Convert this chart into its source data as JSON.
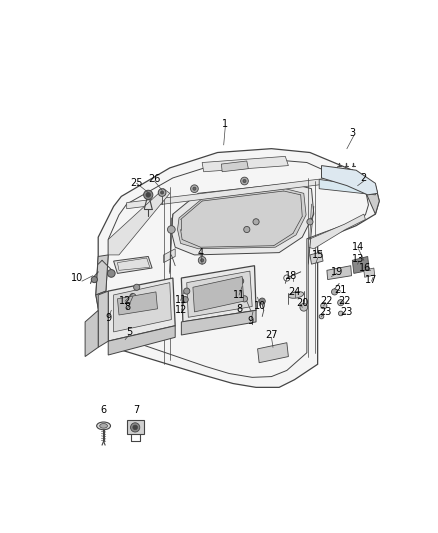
{
  "bg_color": "#ffffff",
  "fig_width": 4.38,
  "fig_height": 5.33,
  "dpi": 100,
  "line_color": "#444444",
  "label_color": "#000000",
  "label_fontsize": 7.0,
  "part_numbers": [
    [
      "1",
      220,
      78
    ],
    [
      "2",
      400,
      148
    ],
    [
      "3",
      385,
      90
    ],
    [
      "4",
      188,
      245
    ],
    [
      "5",
      95,
      348
    ],
    [
      "6",
      62,
      450
    ],
    [
      "7",
      105,
      450
    ],
    [
      "8",
      93,
      315
    ],
    [
      "8",
      238,
      318
    ],
    [
      "9",
      68,
      330
    ],
    [
      "9",
      253,
      334
    ],
    [
      "10",
      28,
      278
    ],
    [
      "10",
      265,
      314
    ],
    [
      "11",
      162,
      307
    ],
    [
      "11",
      238,
      300
    ],
    [
      "12",
      90,
      308
    ],
    [
      "12",
      163,
      320
    ],
    [
      "13",
      393,
      253
    ],
    [
      "14",
      393,
      238
    ],
    [
      "15",
      340,
      248
    ],
    [
      "16",
      402,
      265
    ],
    [
      "17",
      410,
      280
    ],
    [
      "18",
      305,
      276
    ],
    [
      "19",
      365,
      270
    ],
    [
      "20",
      320,
      310
    ],
    [
      "21",
      370,
      293
    ],
    [
      "22",
      352,
      308
    ],
    [
      "22",
      375,
      308
    ],
    [
      "23",
      350,
      322
    ],
    [
      "23",
      378,
      322
    ],
    [
      "24",
      310,
      296
    ],
    [
      "25",
      105,
      155
    ],
    [
      "26",
      128,
      150
    ],
    [
      "27",
      280,
      352
    ]
  ],
  "leader_lines": [
    [
      220,
      82,
      220,
      115
    ],
    [
      395,
      94,
      375,
      108
    ],
    [
      370,
      294,
      362,
      297
    ],
    [
      32,
      282,
      48,
      272
    ],
    [
      110,
      156,
      120,
      168
    ],
    [
      130,
      154,
      138,
      165
    ],
    [
      400,
      148,
      388,
      160
    ],
    [
      340,
      252,
      338,
      260
    ],
    [
      68,
      330,
      75,
      308
    ],
    [
      94,
      308,
      102,
      295
    ],
    [
      163,
      307,
      165,
      290
    ],
    [
      265,
      318,
      252,
      305
    ],
    [
      238,
      301,
      242,
      290
    ],
    [
      305,
      278,
      312,
      275
    ],
    [
      365,
      272,
      362,
      275
    ],
    [
      311,
      298,
      316,
      292
    ],
    [
      350,
      296,
      354,
      292
    ],
    [
      352,
      310,
      349,
      313
    ],
    [
      375,
      310,
      373,
      314
    ],
    [
      350,
      325,
      348,
      328
    ],
    [
      378,
      325,
      376,
      328
    ],
    [
      280,
      355,
      285,
      368
    ]
  ]
}
